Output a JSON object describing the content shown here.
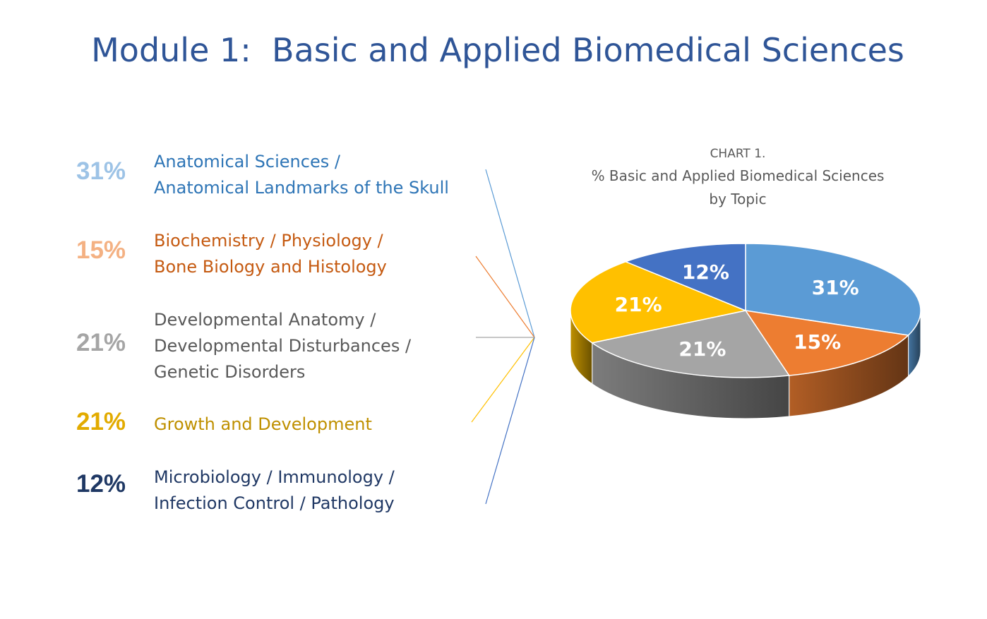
{
  "page": {
    "title_prefix": "Module 1:",
    "title_main": "Basic and Applied Biomedical Sciences"
  },
  "legend": [
    {
      "percent": "31%",
      "lines": [
        "Anatomical Sciences /",
        "Anatomical Landmarks of the Skull"
      ],
      "pct_color": "#9dc3e6",
      "text_color": "#2e75b6"
    },
    {
      "percent": "15%",
      "lines": [
        "Biochemistry / Physiology /",
        "Bone Biology and Histology"
      ],
      "pct_color": "#f4b183",
      "text_color": "#c55a11"
    },
    {
      "percent": "21%",
      "lines": [
        "Developmental Anatomy /",
        "Developmental Disturbances /",
        "Genetic Disorders"
      ],
      "pct_color": "#a5a5a5",
      "text_color": "#595959"
    },
    {
      "percent": "21%",
      "lines": [
        "Growth and Development"
      ],
      "pct_color": "#e2ab00",
      "text_color": "#bf9000"
    },
    {
      "percent": "12%",
      "lines": [
        "Microbiology / Immunology /",
        "Infection Control / Pathology"
      ],
      "pct_color": "#1f3864",
      "text_color": "#203864"
    }
  ],
  "chart_data": {
    "type": "pie",
    "title": "CHART 1.",
    "subtitle_lines": [
      "% Basic and Applied Biomedical Sciences",
      "by Topic"
    ],
    "style": "3d",
    "categories": [
      "Anatomical Sciences / Anatomical Landmarks of the Skull",
      "Biochemistry / Physiology / Bone Biology and Histology",
      "Developmental Anatomy / Developmental Disturbances / Genetic Disorders",
      "Growth and Development",
      "Microbiology / Immunology / Infection Control / Pathology"
    ],
    "values": [
      31,
      15,
      21,
      21,
      12
    ],
    "labels": [
      "31%",
      "15%",
      "21%",
      "21%",
      "12%"
    ],
    "colors": [
      "#5b9bd5",
      "#ed7d31",
      "#a5a5a5",
      "#ffc000",
      "#4472c4"
    ]
  }
}
